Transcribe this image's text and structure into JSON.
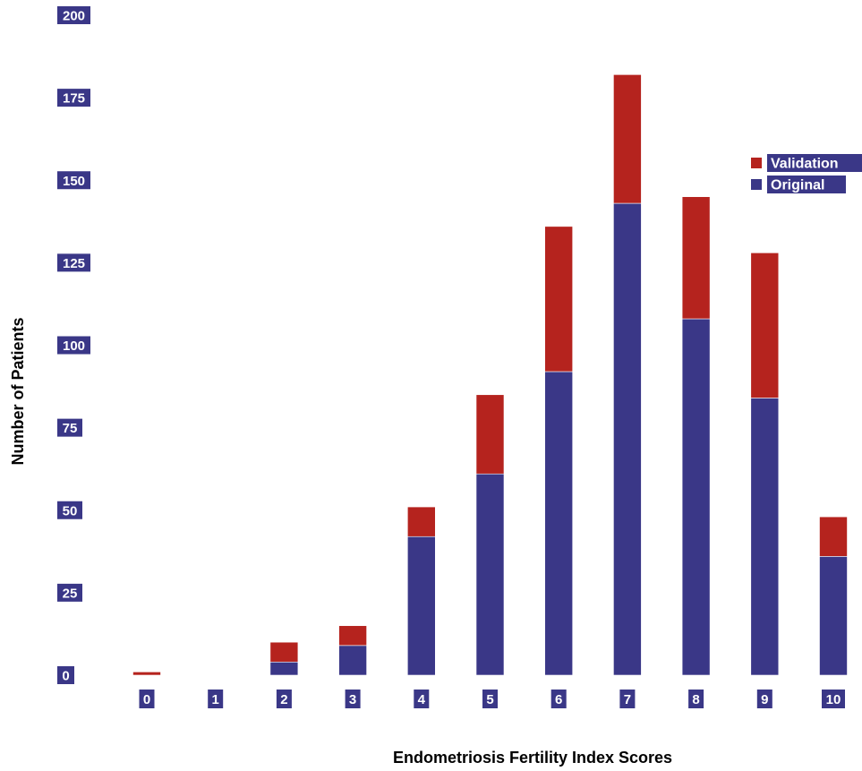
{
  "chart_data": {
    "type": "bar",
    "stacked": true,
    "xlabel": "Endometriosis Fertility Index Scores",
    "ylabel": "Number of Patients",
    "categories": [
      "0",
      "1",
      "2",
      "3",
      "4",
      "5",
      "6",
      "7",
      "8",
      "9",
      "10"
    ],
    "ylim": [
      0,
      200
    ],
    "yticks": [
      "0",
      "25",
      "50",
      "75",
      "100",
      "125",
      "150",
      "175",
      "200"
    ],
    "series": [
      {
        "name": "Original",
        "color": "#3a3787",
        "values": [
          0,
          0,
          4,
          9,
          42,
          61,
          92,
          143,
          108,
          84,
          36
        ]
      },
      {
        "name": "Validation",
        "color": "#b5231e",
        "values": [
          1,
          0,
          6,
          6,
          9,
          24,
          44,
          39,
          37,
          44,
          12
        ]
      }
    ],
    "legend": {
      "position": "top-right",
      "order": [
        "Validation",
        "Original"
      ]
    },
    "grid": false,
    "label_background": "#3a3787"
  }
}
